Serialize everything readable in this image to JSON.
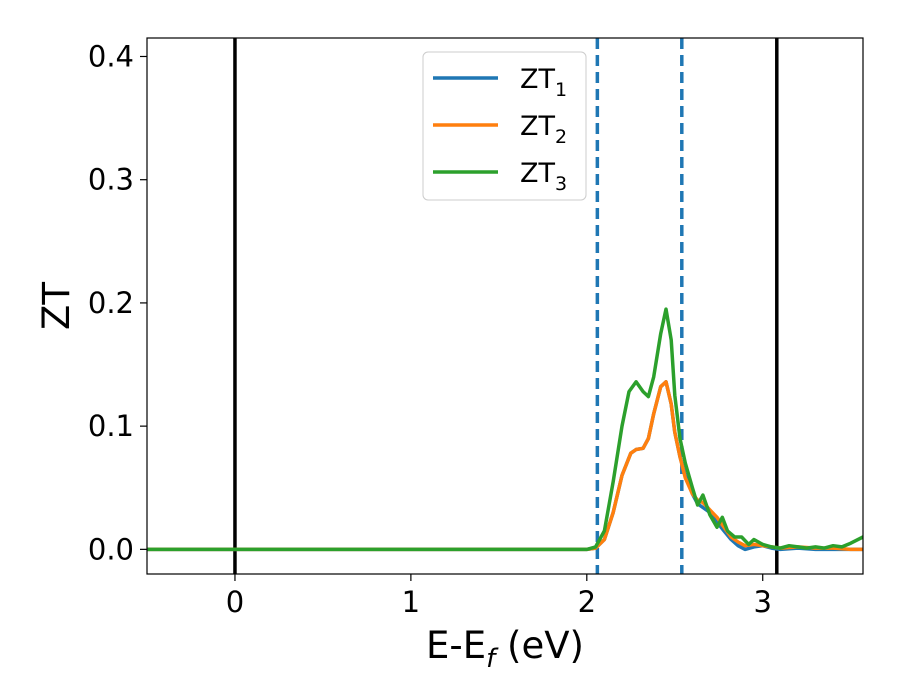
{
  "chart_data": {
    "type": "line",
    "xlabel_main": "E-E",
    "xlabel_sub": "f",
    "xlabel_unit": " (eV)",
    "ylabel": "ZT",
    "xlim": [
      -0.5,
      3.57
    ],
    "ylim": [
      -0.02,
      0.415
    ],
    "xticks": [
      0,
      1,
      2,
      3
    ],
    "xtick_labels": [
      "0",
      "1",
      "2",
      "3"
    ],
    "yticks": [
      0.0,
      0.1,
      0.2,
      0.3,
      0.4
    ],
    "ytick_labels": [
      "0.0",
      "0.1",
      "0.2",
      "0.3",
      "0.4"
    ],
    "grid": false,
    "legend_position": "upper-center",
    "vertical_lines": [
      {
        "x": 0.0,
        "style": "solid",
        "color": "#000000"
      },
      {
        "x": 3.08,
        "style": "solid",
        "color": "#000000"
      },
      {
        "x": 2.06,
        "style": "dashed",
        "color": "#1f77b4"
      },
      {
        "x": 2.54,
        "style": "dashed",
        "color": "#1f77b4"
      }
    ],
    "series": [
      {
        "name": "ZT",
        "name_sub": "1",
        "color": "#1f77b4",
        "x": [
          -0.5,
          1.9,
          2.0,
          2.05,
          2.1,
          2.15,
          2.2,
          2.25,
          2.28,
          2.32,
          2.35,
          2.38,
          2.42,
          2.45,
          2.48,
          2.5,
          2.53,
          2.56,
          2.6,
          2.63,
          2.66,
          2.7,
          2.74,
          2.78,
          2.82,
          2.86,
          2.9,
          2.95,
          3.0,
          3.05,
          3.1,
          3.2,
          3.3,
          3.4,
          3.5,
          3.57
        ],
        "y": [
          0.0,
          0.0,
          0.0,
          0.001,
          0.008,
          0.03,
          0.06,
          0.078,
          0.081,
          0.082,
          0.09,
          0.11,
          0.132,
          0.136,
          0.118,
          0.095,
          0.075,
          0.06,
          0.045,
          0.037,
          0.034,
          0.03,
          0.022,
          0.015,
          0.008,
          0.003,
          0.0,
          0.002,
          0.003,
          0.001,
          0.0,
          0.001,
          0.0,
          0.0,
          0.0,
          0.0
        ]
      },
      {
        "name": "ZT",
        "name_sub": "2",
        "color": "#ff7f0e",
        "x": [
          -0.5,
          1.9,
          2.0,
          2.05,
          2.1,
          2.15,
          2.2,
          2.25,
          2.28,
          2.32,
          2.35,
          2.38,
          2.42,
          2.45,
          2.48,
          2.5,
          2.53,
          2.56,
          2.6,
          2.63,
          2.66,
          2.7,
          2.74,
          2.78,
          2.82,
          2.86,
          2.9,
          2.95,
          3.0,
          3.05,
          3.1,
          3.2,
          3.3,
          3.4,
          3.5,
          3.57
        ],
        "y": [
          0.0,
          0.0,
          0.0,
          0.001,
          0.008,
          0.03,
          0.06,
          0.078,
          0.081,
          0.082,
          0.09,
          0.11,
          0.132,
          0.136,
          0.118,
          0.095,
          0.075,
          0.058,
          0.045,
          0.04,
          0.038,
          0.032,
          0.026,
          0.018,
          0.01,
          0.006,
          0.003,
          0.004,
          0.003,
          0.002,
          0.001,
          0.002,
          0.001,
          0.001,
          0.0,
          0.0
        ]
      },
      {
        "name": "ZT",
        "name_sub": "3",
        "color": "#2ca02c",
        "x": [
          -0.5,
          1.9,
          2.0,
          2.05,
          2.1,
          2.15,
          2.2,
          2.24,
          2.28,
          2.32,
          2.35,
          2.38,
          2.42,
          2.45,
          2.48,
          2.5,
          2.53,
          2.56,
          2.6,
          2.63,
          2.66,
          2.7,
          2.74,
          2.77,
          2.8,
          2.84,
          2.88,
          2.92,
          2.95,
          3.0,
          3.05,
          3.1,
          3.15,
          3.2,
          3.25,
          3.3,
          3.35,
          3.4,
          3.45,
          3.5,
          3.57
        ],
        "y": [
          0.0,
          0.0,
          0.0,
          0.002,
          0.015,
          0.055,
          0.1,
          0.128,
          0.136,
          0.128,
          0.124,
          0.14,
          0.175,
          0.195,
          0.17,
          0.125,
          0.09,
          0.07,
          0.05,
          0.036,
          0.044,
          0.028,
          0.018,
          0.026,
          0.015,
          0.01,
          0.01,
          0.004,
          0.008,
          0.004,
          0.002,
          0.001,
          0.003,
          0.002,
          0.001,
          0.002,
          0.001,
          0.003,
          0.002,
          0.005,
          0.01
        ]
      }
    ]
  }
}
